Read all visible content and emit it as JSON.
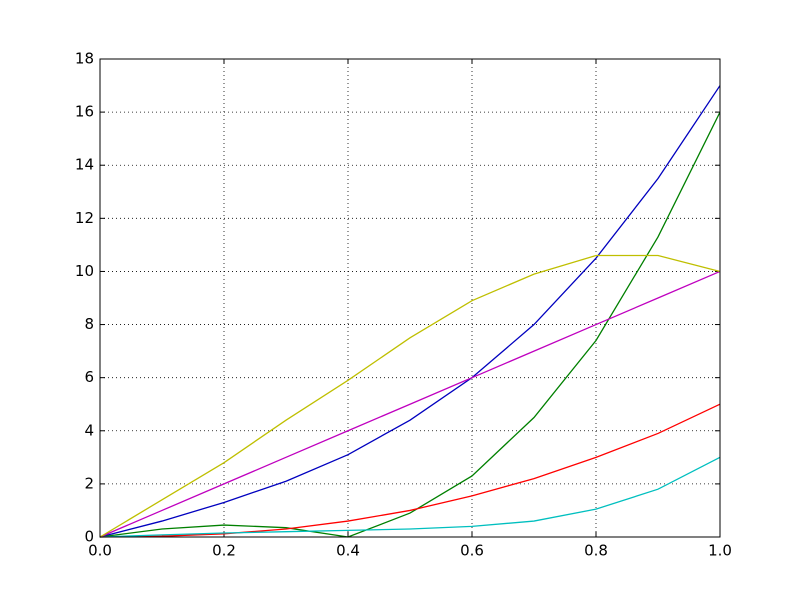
{
  "chart_data": {
    "type": "line",
    "x": [
      0,
      0.1,
      0.2,
      0.3,
      0.4,
      0.5,
      0.6,
      0.7,
      0.8,
      0.9,
      1
    ],
    "series": [
      {
        "color": "#0000bf",
        "values": [
          0,
          0.6,
          1.3,
          2.1,
          3.1,
          4.4,
          6.0,
          8.0,
          10.5,
          13.5,
          17
        ]
      },
      {
        "color": "#008000",
        "values": [
          0,
          0.3,
          0.45,
          0.35,
          0,
          0.9,
          2.3,
          4.5,
          7.4,
          11.3,
          16
        ]
      },
      {
        "color": "#ff0000",
        "values": [
          0,
          0.03,
          0.12,
          0.3,
          0.6,
          1.0,
          1.55,
          2.2,
          3.0,
          3.9,
          5
        ]
      },
      {
        "color": "#00bfbf",
        "values": [
          0,
          0.08,
          0.15,
          0.2,
          0.25,
          0.3,
          0.4,
          0.6,
          1.05,
          1.8,
          3
        ]
      },
      {
        "color": "#bf00bf",
        "values": [
          0,
          1,
          2,
          3,
          4,
          5,
          6,
          7,
          8,
          9,
          10
        ]
      },
      {
        "color": "#bfbf00",
        "values": [
          0,
          1.4,
          2.8,
          4.4,
          5.9,
          7.5,
          8.9,
          9.9,
          10.6,
          10.6,
          10
        ]
      }
    ],
    "xlim": [
      0,
      1
    ],
    "xticks": [
      {
        "value": 0,
        "label": "0.0"
      },
      0.2,
      0.4,
      0.6,
      0.8,
      {
        "value": 1,
        "label": "1.0"
      }
    ],
    "ylim": [
      0,
      18
    ],
    "yticks": [
      0,
      2,
      4,
      6,
      8,
      10,
      12,
      14,
      16,
      18
    ],
    "grid": true
  }
}
